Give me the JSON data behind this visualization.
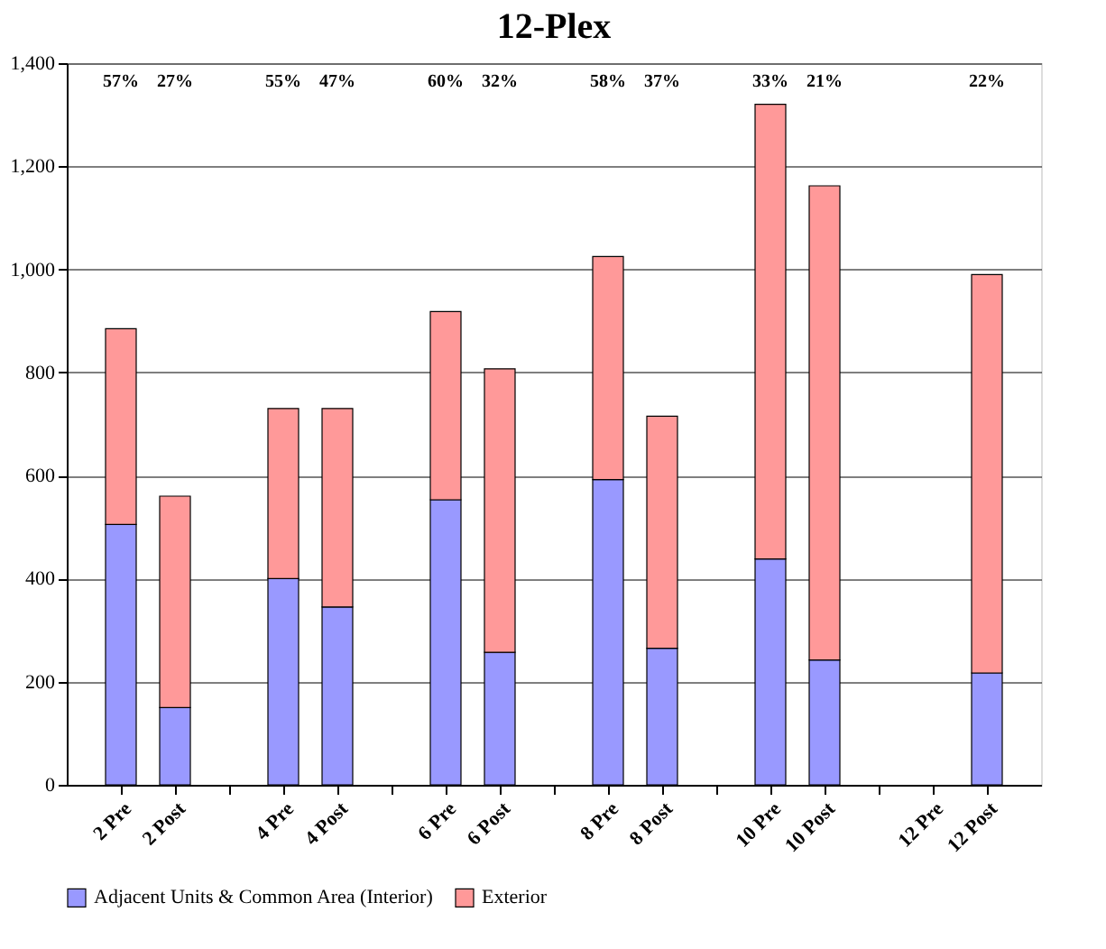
{
  "chart_data": {
    "type": "bar",
    "title": "12-Plex",
    "stacked": true,
    "categories": [
      "2 Pre",
      "2 Post",
      null,
      "4 Pre",
      "4 Post",
      null,
      "6 Pre",
      "6 Post",
      null,
      "8 Pre",
      "8 Post",
      null,
      "10 Pre",
      "10 Post",
      null,
      "12 Pre",
      "12 Post"
    ],
    "series": [
      {
        "name": "Adjacent Units & Common Area (Interior)",
        "color": "#9999ff",
        "values": [
          505,
          150,
          null,
          400,
          345,
          null,
          553,
          257,
          null,
          592,
          265,
          null,
          438,
          242,
          null,
          null,
          217
        ]
      },
      {
        "name": "Exterior",
        "color": "#ff9999",
        "values": [
          380,
          410,
          null,
          330,
          385,
          null,
          365,
          550,
          null,
          433,
          450,
          null,
          882,
          920,
          null,
          null,
          773
        ]
      }
    ],
    "annotations": [
      "57%",
      "27%",
      "55%",
      "47%",
      "60%",
      "32%",
      "58%",
      "37%",
      "33%",
      "21%",
      "22%"
    ],
    "ylim": [
      0,
      1400
    ],
    "yticks": [
      {
        "value": 0,
        "label": "0"
      },
      {
        "value": 200,
        "label": "200"
      },
      {
        "value": 400,
        "label": "400"
      },
      {
        "value": 600,
        "label": "600"
      },
      {
        "value": 800,
        "label": "800"
      },
      {
        "value": 1000,
        "label": "1,000"
      },
      {
        "value": 1200,
        "label": "1,200"
      },
      {
        "value": 1400,
        "label": "1,400"
      }
    ],
    "grid": "y",
    "legend": "bottom"
  }
}
